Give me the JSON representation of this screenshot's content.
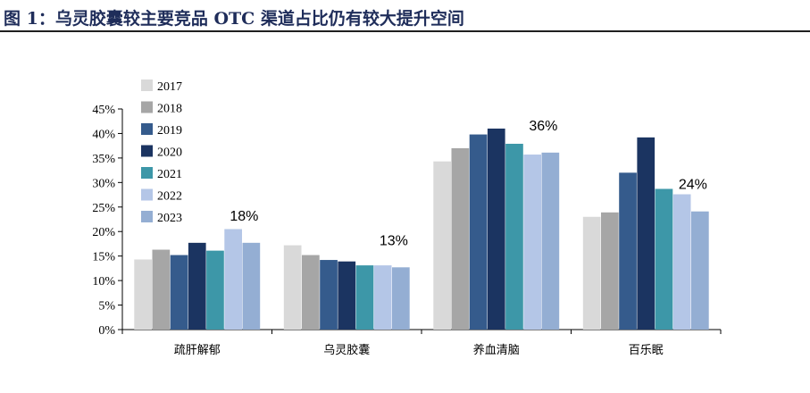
{
  "title": "图 1：乌灵胶囊较主要竞品 OTC 渠道占比仍有较大提升空间",
  "chart_data": {
    "type": "bar",
    "title": "图 1：乌灵胶囊较主要竞品 OTC 渠道占比仍有较大提升空间",
    "xlabel": "",
    "ylabel": "",
    "ylim": [
      0,
      45
    ],
    "yticks": [
      "0%",
      "5%",
      "10%",
      "15%",
      "20%",
      "25%",
      "30%",
      "35%",
      "40%",
      "45%"
    ],
    "grid": false,
    "legend_position": "top-left",
    "categories": [
      "疏肝解郁",
      "乌灵胶囊",
      "养血清脑",
      "百乐眠"
    ],
    "series": [
      {
        "name": "2017",
        "color": "#d9d9d9",
        "values": [
          14.3,
          17.2,
          34.3,
          23.0
        ]
      },
      {
        "name": "2018",
        "color": "#a6a6a6",
        "values": [
          16.3,
          15.2,
          37.0,
          23.9
        ]
      },
      {
        "name": "2019",
        "color": "#355b8c",
        "values": [
          15.2,
          14.2,
          39.8,
          32.0
        ]
      },
      {
        "name": "2020",
        "color": "#1b3461",
        "values": [
          17.7,
          13.9,
          41.0,
          39.2
        ]
      },
      {
        "name": "2021",
        "color": "#3d97a8",
        "values": [
          16.1,
          13.1,
          37.9,
          28.7
        ]
      },
      {
        "name": "2022",
        "color": "#b4c6e7",
        "values": [
          20.5,
          13.1,
          35.7,
          27.6
        ]
      },
      {
        "name": "2023",
        "color": "#94aed3",
        "values": [
          17.7,
          12.7,
          36.1,
          24.1
        ]
      }
    ],
    "data_labels": [
      "18%",
      "13%",
      "36%",
      "24%"
    ]
  }
}
